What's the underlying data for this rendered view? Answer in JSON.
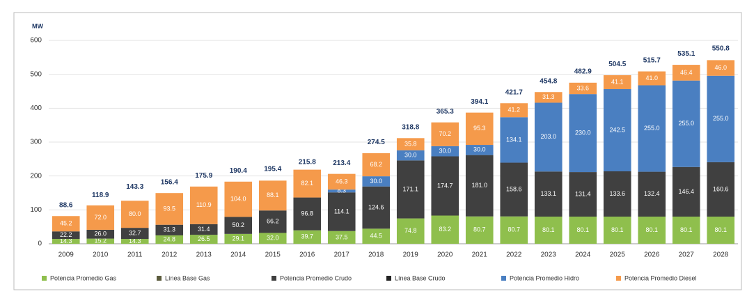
{
  "chart_data": {
    "type": "stacked-bar",
    "y_unit": "MW",
    "categories": [
      "2009",
      "2010",
      "2011",
      "2012",
      "2013",
      "2014",
      "2015",
      "2016",
      "2017",
      "2018",
      "2019",
      "2020",
      "2021",
      "2022",
      "2023",
      "2024",
      "2025",
      "2026",
      "2027",
      "2028"
    ],
    "series": [
      {
        "name": "Potencia Promedio Gas",
        "color": "#8fbf4d",
        "values": [
          14.3,
          15.2,
          14.3,
          24.8,
          26.5,
          29.1,
          32.0,
          39.7,
          37.5,
          44.5,
          74.8,
          83.2,
          80.7,
          80.7,
          80.1,
          80.1,
          80.1,
          80.1,
          80.1,
          80.1
        ],
        "value_labels": [
          "14.3",
          "15.2",
          "14.3",
          "24.8",
          "26.5",
          "29.1",
          "32.0",
          "39.7",
          "37.5",
          "44.5",
          "74.8",
          "83.2",
          "80.7",
          "80.7",
          "80.1",
          "80.1",
          "80.1",
          "80.1",
          "80.1",
          "80.1"
        ]
      },
      {
        "name": "Línea Base Gas",
        "color": "#5b5b3c",
        "values": [
          null,
          null,
          null,
          null,
          null,
          null,
          null,
          null,
          null,
          null,
          null,
          null,
          null,
          null,
          null,
          null,
          null,
          null,
          null,
          null
        ]
      },
      {
        "name": "Potencia Promedio Crudo",
        "color": "#404040",
        "values": [
          22.2,
          26.0,
          32.7,
          31.3,
          31.4,
          50.2,
          66.2,
          96.8,
          114.1,
          124.6,
          171.1,
          174.7,
          181.0,
          158.6,
          133.1,
          131.4,
          133.6,
          132.4,
          146.4,
          160.6
        ],
        "value_labels": [
          "22.2",
          "26.0",
          "32.7",
          "31.3",
          "31.4",
          "50.2",
          "66.2",
          "96.8",
          "114.1",
          "124.6",
          "171.1",
          "174.7",
          "181.0",
          "158.6",
          "133.1",
          "131.4",
          "133.6",
          "132.4",
          "146.4",
          "160.6"
        ]
      },
      {
        "name": "Línea Base Crudo",
        "color": "#222222",
        "values": [
          null,
          null,
          null,
          null,
          null,
          null,
          null,
          null,
          null,
          null,
          null,
          null,
          null,
          null,
          null,
          null,
          null,
          null,
          null,
          null
        ]
      },
      {
        "name": "Potencia Promedio Hidro",
        "color": "#4a7fc1",
        "values": [
          null,
          null,
          null,
          null,
          null,
          null,
          null,
          null,
          8.3,
          30.0,
          30.0,
          30.0,
          30.0,
          134.1,
          203.0,
          230.0,
          242.5,
          255.0,
          255.0,
          255.0
        ],
        "value_labels": [
          null,
          null,
          null,
          null,
          null,
          null,
          null,
          null,
          "8.3",
          "30.0",
          "30.0",
          "30.0",
          "30.0",
          "134.1",
          "203.0",
          "230.0",
          "242.5",
          "255.0",
          "255.0",
          "255.0"
        ]
      },
      {
        "name": "Potencia Promedio Diesel",
        "color": "#f59a4b",
        "values": [
          45.2,
          72.0,
          80.0,
          93.5,
          110.9,
          104.0,
          88.1,
          82.1,
          46.3,
          68.2,
          35.8,
          70.2,
          95.3,
          41.2,
          31.3,
          33.6,
          41.1,
          41.0,
          46.4,
          46.0
        ],
        "value_labels": [
          "45.2",
          "72.0",
          "80.0",
          "93.5",
          "110.9",
          "104.0",
          "88.1",
          "82.1",
          "46.3",
          "68.2",
          "35.8",
          "70.2",
          "95.3",
          "41.2",
          "31.3",
          "33.6",
          "41.1",
          "41.0",
          "46.4",
          "46.0"
        ]
      }
    ],
    "totals": [
      88.6,
      118.9,
      143.3,
      156.4,
      175.9,
      190.4,
      195.4,
      215.8,
      213.4,
      274.5,
      318.8,
      365.3,
      394.1,
      421.7,
      454.8,
      482.9,
      504.5,
      515.7,
      535.1,
      550.8
    ],
    "ylim": [
      0,
      600
    ],
    "yticks": [
      0,
      100,
      200,
      300,
      400,
      500,
      600
    ],
    "grid": true,
    "legend": "bottom"
  }
}
